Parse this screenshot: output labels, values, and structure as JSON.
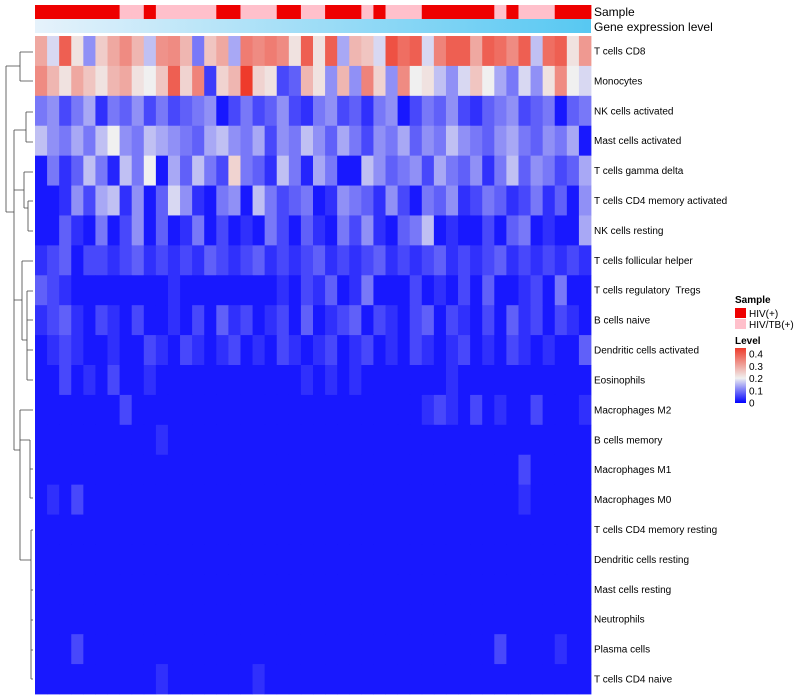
{
  "chart_data": {
    "type": "heatmap",
    "annotations": {
      "sample_label": "Sample",
      "gene_label": "Gene expression level"
    },
    "rows": [
      "T cells CD8",
      "Monocytes",
      "NK cells activated",
      "Mast cells activated",
      "T cells gamma delta",
      "T cells CD4 memory activated",
      "NK cells resting",
      "T cells follicular helper",
      "T cells regulatory  Tregs",
      "B cells naive",
      "Dendritic cells activated",
      "Eosinophils",
      "Macrophages M2",
      "B cells memory",
      "Macrophages M1",
      "Macrophages M0",
      "T cells CD4 memory resting",
      "Dendritic cells resting",
      "Mast cells resting",
      "Neutrophils",
      "Plasma cells",
      "T cells CD4 naive"
    ],
    "samples": [
      "HIV(+)",
      "HIV(+)",
      "HIV(+)",
      "HIV(+)",
      "HIV(+)",
      "HIV(+)",
      "HIV(+)",
      "HIV/TB(+)",
      "HIV/TB(+)",
      "HIV(+)",
      "HIV/TB(+)",
      "HIV/TB(+)",
      "HIV/TB(+)",
      "HIV/TB(+)",
      "HIV/TB(+)",
      "HIV(+)",
      "HIV(+)",
      "HIV/TB(+)",
      "HIV/TB(+)",
      "HIV/TB(+)",
      "HIV(+)",
      "HIV(+)",
      "HIV/TB(+)",
      "HIV/TB(+)",
      "HIV(+)",
      "HIV(+)",
      "HIV(+)",
      "HIV/TB(+)",
      "HIV(+)",
      "HIV/TB(+)",
      "HIV/TB(+)",
      "HIV/TB(+)",
      "HIV(+)",
      "HIV(+)",
      "HIV(+)",
      "HIV(+)",
      "HIV(+)",
      "HIV(+)",
      "HIV/TB(+)",
      "HIV(+)",
      "HIV/TB(+)",
      "HIV/TB(+)",
      "HIV/TB(+)",
      "HIV(+)",
      "HIV(+)",
      "HIV(+)"
    ],
    "values": [
      [
        0.3,
        0.18,
        0.4,
        0.22,
        0.12,
        0.25,
        0.3,
        0.34,
        0.28,
        0.16,
        0.33,
        0.34,
        0.28,
        0.1,
        0.26,
        0.3,
        0.14,
        0.36,
        0.34,
        0.36,
        0.34,
        0.22,
        0.4,
        0.22,
        0.4,
        0.14,
        0.28,
        0.26,
        0.18,
        0.42,
        0.38,
        0.4,
        0.18,
        0.35,
        0.4,
        0.4,
        0.3,
        0.4,
        0.38,
        0.34,
        0.4,
        0.16,
        0.38,
        0.4,
        0.22,
        0.32
      ],
      [
        0.34,
        0.28,
        0.22,
        0.3,
        0.26,
        0.22,
        0.28,
        0.3,
        0.22,
        0.2,
        0.26,
        0.4,
        0.24,
        0.35,
        0.05,
        0.24,
        0.28,
        0.45,
        0.24,
        0.22,
        0.06,
        0.08,
        0.28,
        0.22,
        0.12,
        0.28,
        0.12,
        0.35,
        0.24,
        0.12,
        0.34,
        0.2,
        0.22,
        0.16,
        0.12,
        0.18,
        0.26,
        0.2,
        0.14,
        0.1,
        0.18,
        0.12,
        0.22,
        0.34,
        0.2,
        0.18
      ],
      [
        0.1,
        0.12,
        0.06,
        0.1,
        0.14,
        0.04,
        0.1,
        0.08,
        0.12,
        0.06,
        0.1,
        0.06,
        0.08,
        0.1,
        0.12,
        0.02,
        0.06,
        0.1,
        0.06,
        0.08,
        0.12,
        0.06,
        0.04,
        0.1,
        0.12,
        0.06,
        0.08,
        0.04,
        0.1,
        0.12,
        0.02,
        0.06,
        0.1,
        0.08,
        0.12,
        0.06,
        0.04,
        0.08,
        0.1,
        0.12,
        0.06,
        0.08,
        0.1,
        0.02,
        0.08,
        0.1
      ],
      [
        0.16,
        0.12,
        0.1,
        0.14,
        0.1,
        0.16,
        0.2,
        0.12,
        0.1,
        0.16,
        0.14,
        0.12,
        0.1,
        0.08,
        0.14,
        0.16,
        0.12,
        0.1,
        0.14,
        0.06,
        0.12,
        0.1,
        0.16,
        0.12,
        0.08,
        0.14,
        0.1,
        0.06,
        0.12,
        0.1,
        0.14,
        0.08,
        0.12,
        0.1,
        0.16,
        0.12,
        0.1,
        0.08,
        0.12,
        0.14,
        0.1,
        0.08,
        0.12,
        0.1,
        0.14,
        0.02
      ],
      [
        0.02,
        0.1,
        0.04,
        0.08,
        0.16,
        0.1,
        0.03,
        0.16,
        0.1,
        0.2,
        0.02,
        0.14,
        0.08,
        0.16,
        0.1,
        0.06,
        0.24,
        0.1,
        0.08,
        0.04,
        0.16,
        0.1,
        0.03,
        0.14,
        0.1,
        0.02,
        0.02,
        0.16,
        0.12,
        0.08,
        0.1,
        0.12,
        0.06,
        0.14,
        0.1,
        0.08,
        0.12,
        0.04,
        0.1,
        0.16,
        0.08,
        0.12,
        0.1,
        0.06,
        0.08,
        0.14
      ],
      [
        0.02,
        0.02,
        0.04,
        0.12,
        0.06,
        0.14,
        0.16,
        0.04,
        0.12,
        0.02,
        0.08,
        0.18,
        0.12,
        0.04,
        0.02,
        0.1,
        0.12,
        0.02,
        0.16,
        0.1,
        0.06,
        0.08,
        0.1,
        0.02,
        0.04,
        0.12,
        0.1,
        0.08,
        0.04,
        0.12,
        0.06,
        0.02,
        0.1,
        0.08,
        0.12,
        0.04,
        0.06,
        0.1,
        0.08,
        0.04,
        0.06,
        0.1,
        0.04,
        0.08,
        0.02,
        0.12
      ],
      [
        0.02,
        0.02,
        0.08,
        0.04,
        0.02,
        0.1,
        0.02,
        0.06,
        0.12,
        0.02,
        0.08,
        0.02,
        0.04,
        0.1,
        0.02,
        0.06,
        0.02,
        0.04,
        0.02,
        0.1,
        0.06,
        0.02,
        0.08,
        0.04,
        0.02,
        0.1,
        0.06,
        0.12,
        0.04,
        0.02,
        0.08,
        0.1,
        0.16,
        0.02,
        0.04,
        0.02,
        0.02,
        0.06,
        0.02,
        0.08,
        0.1,
        0.02,
        0.04,
        0.02,
        0.02,
        0.14
      ],
      [
        0.04,
        0.06,
        0.08,
        0.02,
        0.06,
        0.06,
        0.04,
        0.06,
        0.08,
        0.04,
        0.06,
        0.04,
        0.06,
        0.04,
        0.08,
        0.06,
        0.04,
        0.06,
        0.08,
        0.04,
        0.06,
        0.04,
        0.06,
        0.08,
        0.04,
        0.06,
        0.04,
        0.06,
        0.08,
        0.04,
        0.06,
        0.04,
        0.06,
        0.08,
        0.04,
        0.06,
        0.04,
        0.06,
        0.08,
        0.04,
        0.06,
        0.04,
        0.06,
        0.04,
        0.06,
        0.04
      ],
      [
        0.08,
        0.06,
        0.04,
        0.02,
        0.02,
        0.02,
        0.02,
        0.02,
        0.02,
        0.02,
        0.02,
        0.04,
        0.02,
        0.02,
        0.02,
        0.02,
        0.02,
        0.02,
        0.02,
        0.02,
        0.04,
        0.02,
        0.06,
        0.04,
        0.08,
        0.02,
        0.04,
        0.1,
        0.02,
        0.02,
        0.02,
        0.06,
        0.02,
        0.04,
        0.02,
        0.06,
        0.02,
        0.08,
        0.02,
        0.02,
        0.04,
        0.06,
        0.02,
        0.1,
        0.02,
        0.02
      ],
      [
        0.04,
        0.06,
        0.08,
        0.04,
        0.02,
        0.06,
        0.04,
        0.02,
        0.06,
        0.02,
        0.02,
        0.04,
        0.02,
        0.06,
        0.02,
        0.08,
        0.04,
        0.06,
        0.02,
        0.04,
        0.06,
        0.02,
        0.08,
        0.02,
        0.04,
        0.06,
        0.08,
        0.02,
        0.06,
        0.04,
        0.02,
        0.06,
        0.08,
        0.02,
        0.06,
        0.04,
        0.02,
        0.06,
        0.02,
        0.08,
        0.04,
        0.06,
        0.02,
        0.06,
        0.04,
        0.02
      ],
      [
        0.02,
        0.04,
        0.06,
        0.04,
        0.02,
        0.02,
        0.04,
        0.02,
        0.02,
        0.06,
        0.04,
        0.02,
        0.06,
        0.04,
        0.02,
        0.04,
        0.06,
        0.02,
        0.04,
        0.02,
        0.06,
        0.04,
        0.02,
        0.04,
        0.06,
        0.02,
        0.04,
        0.06,
        0.02,
        0.04,
        0.02,
        0.06,
        0.04,
        0.02,
        0.04,
        0.06,
        0.02,
        0.04,
        0.02,
        0.06,
        0.04,
        0.02,
        0.04,
        0.02,
        0.02,
        0.08
      ],
      [
        0.02,
        0.02,
        0.06,
        0.02,
        0.04,
        0.02,
        0.06,
        0.02,
        0.02,
        0.04,
        0.02,
        0.02,
        0.02,
        0.02,
        0.02,
        0.02,
        0.02,
        0.02,
        0.02,
        0.02,
        0.02,
        0.02,
        0.04,
        0.02,
        0.04,
        0.02,
        0.04,
        0.02,
        0.02,
        0.02,
        0.02,
        0.02,
        0.02,
        0.02,
        0.04,
        0.02,
        0.02,
        0.02,
        0.02,
        0.02,
        0.02,
        0.02,
        0.02,
        0.02,
        0.02,
        0.02
      ],
      [
        0.02,
        0.02,
        0.02,
        0.02,
        0.02,
        0.02,
        0.02,
        0.06,
        0.02,
        0.02,
        0.02,
        0.02,
        0.02,
        0.02,
        0.02,
        0.02,
        0.02,
        0.02,
        0.02,
        0.02,
        0.02,
        0.02,
        0.02,
        0.02,
        0.02,
        0.02,
        0.02,
        0.02,
        0.02,
        0.02,
        0.02,
        0.02,
        0.04,
        0.06,
        0.04,
        0.02,
        0.06,
        0.02,
        0.04,
        0.02,
        0.02,
        0.06,
        0.02,
        0.02,
        0.02,
        0.04
      ],
      [
        0.02,
        0.02,
        0.02,
        0.02,
        0.02,
        0.02,
        0.02,
        0.02,
        0.02,
        0.02,
        0.04,
        0.02,
        0.02,
        0.02,
        0.02,
        0.02,
        0.02,
        0.02,
        0.02,
        0.02,
        0.02,
        0.02,
        0.02,
        0.02,
        0.02,
        0.02,
        0.02,
        0.02,
        0.02,
        0.02,
        0.02,
        0.02,
        0.02,
        0.02,
        0.02,
        0.02,
        0.02,
        0.02,
        0.02,
        0.02,
        0.02,
        0.02,
        0.02,
        0.02,
        0.02,
        0.02
      ],
      [
        0.02,
        0.02,
        0.02,
        0.02,
        0.02,
        0.02,
        0.02,
        0.02,
        0.02,
        0.02,
        0.02,
        0.02,
        0.02,
        0.02,
        0.02,
        0.02,
        0.02,
        0.02,
        0.02,
        0.02,
        0.02,
        0.02,
        0.02,
        0.02,
        0.02,
        0.02,
        0.02,
        0.02,
        0.02,
        0.02,
        0.02,
        0.02,
        0.02,
        0.02,
        0.02,
        0.02,
        0.02,
        0.02,
        0.02,
        0.02,
        0.06,
        0.02,
        0.02,
        0.02,
        0.02,
        0.02
      ],
      [
        0.02,
        0.04,
        0.02,
        0.06,
        0.02,
        0.02,
        0.02,
        0.02,
        0.02,
        0.02,
        0.02,
        0.02,
        0.02,
        0.02,
        0.02,
        0.02,
        0.02,
        0.02,
        0.02,
        0.02,
        0.02,
        0.02,
        0.02,
        0.02,
        0.02,
        0.02,
        0.02,
        0.02,
        0.02,
        0.02,
        0.02,
        0.02,
        0.02,
        0.02,
        0.02,
        0.02,
        0.02,
        0.02,
        0.02,
        0.02,
        0.04,
        0.02,
        0.02,
        0.02,
        0.02,
        0.02
      ],
      [
        0.02,
        0.02,
        0.02,
        0.02,
        0.02,
        0.02,
        0.02,
        0.02,
        0.02,
        0.02,
        0.02,
        0.02,
        0.02,
        0.02,
        0.02,
        0.02,
        0.02,
        0.02,
        0.02,
        0.02,
        0.02,
        0.02,
        0.02,
        0.02,
        0.02,
        0.02,
        0.02,
        0.02,
        0.02,
        0.02,
        0.02,
        0.02,
        0.02,
        0.02,
        0.02,
        0.02,
        0.02,
        0.02,
        0.02,
        0.02,
        0.02,
        0.02,
        0.02,
        0.02,
        0.02,
        0.02
      ],
      [
        0.02,
        0.02,
        0.02,
        0.02,
        0.02,
        0.02,
        0.02,
        0.02,
        0.02,
        0.02,
        0.02,
        0.02,
        0.02,
        0.02,
        0.02,
        0.02,
        0.02,
        0.02,
        0.02,
        0.02,
        0.02,
        0.02,
        0.02,
        0.02,
        0.02,
        0.02,
        0.02,
        0.02,
        0.02,
        0.02,
        0.02,
        0.02,
        0.02,
        0.02,
        0.02,
        0.02,
        0.02,
        0.02,
        0.02,
        0.02,
        0.02,
        0.02,
        0.02,
        0.02,
        0.02,
        0.02
      ],
      [
        0.02,
        0.02,
        0.02,
        0.02,
        0.02,
        0.02,
        0.02,
        0.02,
        0.02,
        0.02,
        0.02,
        0.02,
        0.02,
        0.02,
        0.02,
        0.02,
        0.02,
        0.02,
        0.02,
        0.02,
        0.02,
        0.02,
        0.02,
        0.02,
        0.02,
        0.02,
        0.02,
        0.02,
        0.02,
        0.02,
        0.02,
        0.02,
        0.02,
        0.02,
        0.02,
        0.02,
        0.02,
        0.02,
        0.02,
        0.02,
        0.02,
        0.02,
        0.02,
        0.02,
        0.02,
        0.02
      ],
      [
        0.02,
        0.02,
        0.02,
        0.02,
        0.02,
        0.02,
        0.02,
        0.02,
        0.02,
        0.02,
        0.02,
        0.02,
        0.02,
        0.02,
        0.02,
        0.02,
        0.02,
        0.02,
        0.02,
        0.02,
        0.02,
        0.02,
        0.02,
        0.02,
        0.02,
        0.02,
        0.02,
        0.02,
        0.02,
        0.02,
        0.02,
        0.02,
        0.02,
        0.02,
        0.02,
        0.02,
        0.02,
        0.02,
        0.02,
        0.02,
        0.02,
        0.02,
        0.02,
        0.02,
        0.02,
        0.02
      ],
      [
        0.02,
        0.02,
        0.02,
        0.06,
        0.02,
        0.02,
        0.02,
        0.02,
        0.02,
        0.02,
        0.02,
        0.02,
        0.02,
        0.02,
        0.02,
        0.02,
        0.02,
        0.02,
        0.02,
        0.02,
        0.02,
        0.02,
        0.02,
        0.02,
        0.02,
        0.02,
        0.02,
        0.02,
        0.02,
        0.02,
        0.02,
        0.02,
        0.02,
        0.02,
        0.02,
        0.02,
        0.02,
        0.02,
        0.06,
        0.02,
        0.02,
        0.02,
        0.02,
        0.04,
        0.02,
        0.02
      ],
      [
        0.02,
        0.02,
        0.02,
        0.02,
        0.02,
        0.02,
        0.02,
        0.02,
        0.02,
        0.02,
        0.04,
        0.02,
        0.02,
        0.02,
        0.02,
        0.02,
        0.02,
        0.02,
        0.04,
        0.02,
        0.02,
        0.02,
        0.02,
        0.02,
        0.02,
        0.02,
        0.02,
        0.02,
        0.02,
        0.02,
        0.02,
        0.02,
        0.02,
        0.02,
        0.02,
        0.02,
        0.02,
        0.02,
        0.02,
        0.02,
        0.02,
        0.02,
        0.02,
        0.02,
        0.02,
        0.02
      ]
    ],
    "legend": {
      "sample_title": "Sample",
      "sample_items": [
        {
          "label": "HIV(+)",
          "color": "#ee0000"
        },
        {
          "label": "HIV/TB(+)",
          "color": "#ffc0cb"
        }
      ],
      "level_title": "Level",
      "level_ticks": [
        {
          "label": "0.4",
          "value": 0.4
        },
        {
          "label": "0.3",
          "value": 0.3
        },
        {
          "label": "0.2",
          "value": 0.2
        },
        {
          "label": "0.1",
          "value": 0.1
        },
        {
          "label": "0",
          "value": 0.0
        }
      ]
    },
    "color_scale": {
      "low": "#0000ff",
      "mid": "#f0f0f0",
      "high": "#ee3b2b",
      "min": 0,
      "mid_value": 0.2,
      "max": 0.45
    },
    "gene_gradient": {
      "from": "#e6f2fb",
      "to": "#57c8f2"
    }
  }
}
